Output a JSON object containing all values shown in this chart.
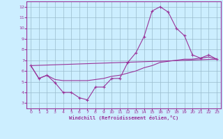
{
  "xlabel": "Windchill (Refroidissement éolien,°C)",
  "bg_color": "#cceeff",
  "line_color": "#993399",
  "grid_color": "#99bbcc",
  "spine_color": "#993399",
  "xlim": [
    -0.5,
    23.5
  ],
  "ylim": [
    2.5,
    12.5
  ],
  "xticks": [
    0,
    1,
    2,
    3,
    4,
    5,
    6,
    7,
    8,
    9,
    10,
    11,
    12,
    13,
    14,
    15,
    16,
    17,
    18,
    19,
    20,
    21,
    22,
    23
  ],
  "yticks": [
    3,
    4,
    5,
    6,
    7,
    8,
    9,
    10,
    11,
    12
  ],
  "line1_x": [
    0,
    1,
    2,
    3,
    4,
    5,
    6,
    7,
    8,
    9,
    10,
    11,
    12,
    13,
    14,
    15,
    16,
    17,
    18,
    19,
    20,
    21,
    22,
    23
  ],
  "line1_y": [
    6.5,
    5.3,
    5.6,
    4.9,
    4.0,
    4.0,
    3.5,
    3.3,
    4.5,
    4.5,
    5.3,
    5.3,
    6.8,
    7.7,
    9.2,
    11.6,
    12.0,
    11.5,
    10.0,
    9.3,
    7.5,
    7.2,
    7.5,
    7.1
  ],
  "line2_x": [
    0,
    1,
    2,
    3,
    4,
    5,
    6,
    7,
    8,
    9,
    10,
    11,
    12,
    13,
    14,
    15,
    16,
    17,
    18,
    19,
    20,
    21,
    22,
    23
  ],
  "line2_y": [
    6.5,
    5.3,
    5.6,
    5.2,
    5.1,
    5.1,
    5.1,
    5.1,
    5.2,
    5.3,
    5.5,
    5.6,
    5.8,
    6.0,
    6.3,
    6.5,
    6.8,
    6.9,
    7.0,
    7.1,
    7.1,
    7.2,
    7.3,
    7.1
  ],
  "line3_x": [
    0,
    23
  ],
  "line3_y": [
    6.5,
    7.1
  ]
}
